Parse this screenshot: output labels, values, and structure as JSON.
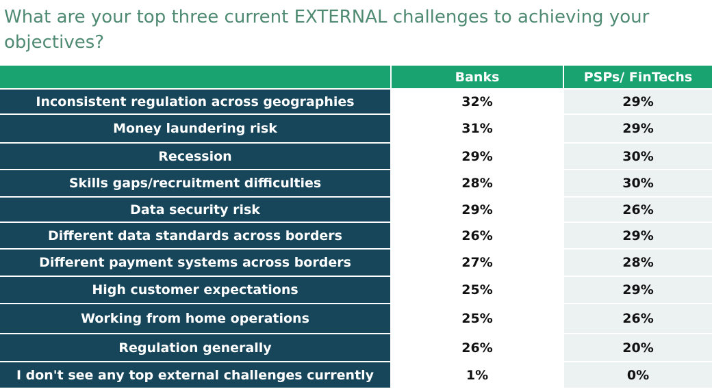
{
  "title": "What are your top three current EXTERNAL challenges to achieving your objectives?",
  "colors": {
    "title": "#4f8a73",
    "header_bg": "#18a370",
    "label_bg": "#17465a",
    "psps_bg": "#ecf2f1"
  },
  "chart_data": {
    "type": "table",
    "columns": [
      "",
      "Banks",
      "PSPs/ FinTechs"
    ],
    "rows": [
      {
        "label": "Inconsistent regulation across geographies",
        "banks": "32%",
        "psps": "29%"
      },
      {
        "label": "Money laundering risk",
        "banks": "31%",
        "psps": "29%"
      },
      {
        "label": "Recession",
        "banks": "29%",
        "psps": "30%"
      },
      {
        "label": "Skills gaps/recruitment difficulties",
        "banks": "28%",
        "psps": "30%"
      },
      {
        "label": "Data security risk",
        "banks": "29%",
        "psps": "26%"
      },
      {
        "label": "Different data standards across borders",
        "banks": "26%",
        "psps": "29%"
      },
      {
        "label": "Different payment systems across borders",
        "banks": "27%",
        "psps": "28%"
      },
      {
        "label": "High customer expectations",
        "banks": "25%",
        "psps": "29%"
      },
      {
        "label": "Working from home operations",
        "banks": "25%",
        "psps": "26%"
      },
      {
        "label": "Regulation generally",
        "banks": "26%",
        "psps": "20%"
      },
      {
        "label": "I don't see any top external challenges currently",
        "banks": "1%",
        "psps": "0%"
      }
    ]
  }
}
